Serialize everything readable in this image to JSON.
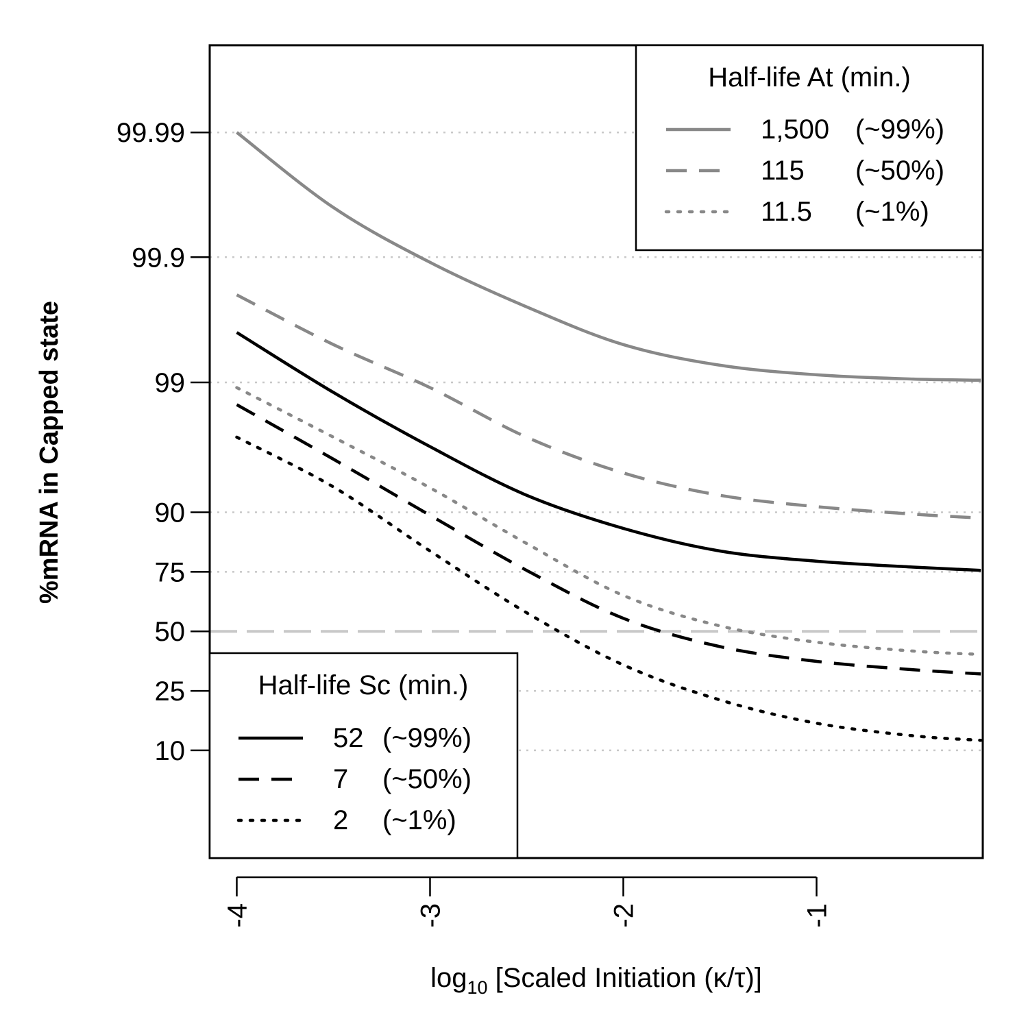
{
  "chart_data": {
    "type": "line",
    "xlabel": {
      "prefix": "log",
      "subscript": "10",
      "suffix": " [Scaled Initiation (κ/τ)]"
    },
    "ylabel": "%mRNA in Capped state",
    "x_ticks": [
      -4,
      -3,
      -2,
      -1
    ],
    "x_tick_labels": [
      "-4",
      "-3",
      "-2",
      "-1"
    ],
    "xlim": [
      -4.14,
      -0.14
    ],
    "y_scale": "logit",
    "y_ticks": [
      99.99,
      99.9,
      99,
      90,
      75,
      50,
      25,
      10
    ],
    "y_tick_labels": [
      "99.99",
      "99.9",
      "99",
      "90",
      "75",
      "50",
      "25",
      "10"
    ],
    "ylim": [
      1.5,
      99.998
    ],
    "grid": "horizontal dotted at y ticks",
    "reference_line": {
      "y": 50,
      "style": "long dashed light gray"
    },
    "legends": [
      {
        "position": "top-right",
        "title": "Half-life At (min.)",
        "entries": [
          {
            "value": "1,500",
            "pct": "(~99%)",
            "color": "#888888",
            "dash": "solid"
          },
          {
            "value": "115",
            "pct": "(~50%)",
            "color": "#888888",
            "dash": "dashed"
          },
          {
            "value": "11.5",
            "pct": "(~1%)",
            "color": "#888888",
            "dash": "dotted"
          }
        ]
      },
      {
        "position": "bottom-left",
        "title": "Half-life Sc (min.)",
        "entries": [
          {
            "value": "52",
            "pct": "(~99%)",
            "color": "#000000",
            "dash": "solid"
          },
          {
            "value": "7",
            "pct": "(~50%)",
            "color": "#000000",
            "dash": "dashed"
          },
          {
            "value": "2",
            "pct": "(~1%)",
            "color": "#000000",
            "dash": "dotted"
          }
        ]
      }
    ],
    "x": [
      -4.0,
      -3.5,
      -3.0,
      -2.5,
      -2.0,
      -1.5,
      -1.0,
      -0.5,
      -0.15
    ],
    "series": [
      {
        "group": "At",
        "color": "#888888",
        "dash": "solid",
        "values": [
          99.99,
          99.96,
          99.89,
          99.75,
          99.5,
          99.27,
          99.13,
          99.06,
          99.04
        ]
      },
      {
        "group": "At",
        "color": "#888888",
        "dash": "dashed",
        "values": [
          99.8,
          99.5,
          98.9,
          97.3,
          94.9,
          92.5,
          90.9,
          89.7,
          89.0
        ]
      },
      {
        "group": "At",
        "color": "#888888",
        "dash": "dotted",
        "values": [
          98.9,
          97.3,
          93.4,
          83.5,
          66.0,
          52.5,
          45.0,
          41.0,
          39.5
        ]
      },
      {
        "group": "Sc",
        "color": "#000000",
        "dash": "solid",
        "values": [
          99.6,
          98.8,
          96.8,
          92.5,
          87.0,
          81.5,
          78.5,
          76.6,
          75.5
        ]
      },
      {
        "group": "Sc",
        "color": "#000000",
        "dash": "dashed",
        "values": [
          98.5,
          96.0,
          89.5,
          75.5,
          56.0,
          43.0,
          36.5,
          33.0,
          31.3
        ]
      },
      {
        "group": "Sc",
        "color": "#000000",
        "dash": "dotted",
        "values": [
          97.3,
          93.5,
          81.5,
          58.5,
          35.0,
          22.0,
          15.5,
          12.7,
          11.8
        ]
      }
    ]
  }
}
